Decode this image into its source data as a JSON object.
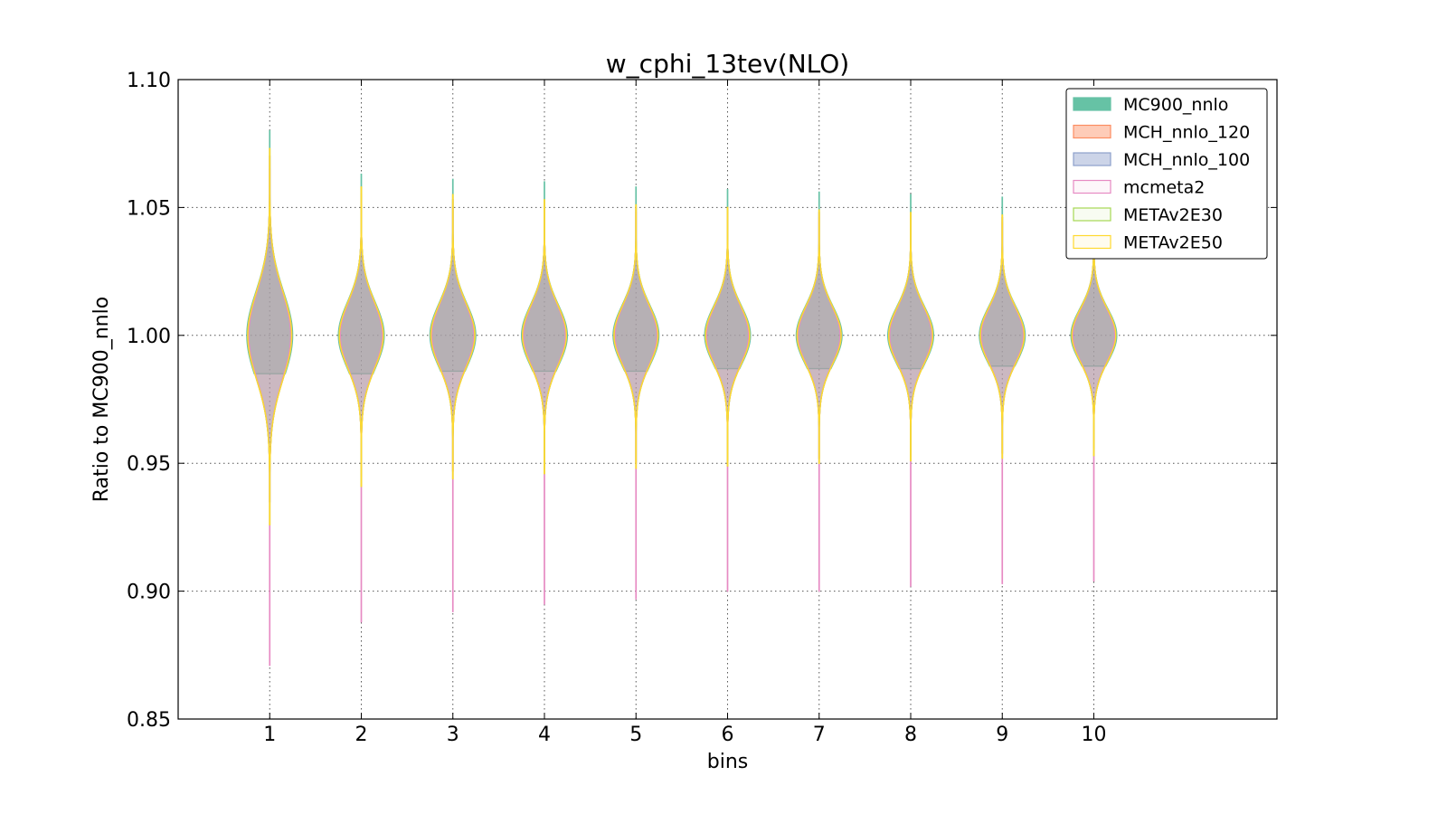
{
  "chart_data": {
    "type": "violin",
    "title": "w_cphi_13tev(NLO)",
    "xlabel": "bins",
    "ylabel": "Ratio to MC900_nnlo",
    "xticks": [
      "1",
      "2",
      "3",
      "4",
      "5",
      "6",
      "7",
      "8",
      "9",
      "10"
    ],
    "yticks": [
      "0.85",
      "0.90",
      "0.95",
      "1.00",
      "1.05",
      "1.10"
    ],
    "ylim": [
      0.85,
      1.1
    ],
    "xlim": [
      0,
      12
    ],
    "grid": true,
    "legend_position": "top-right",
    "categories": [
      1,
      2,
      3,
      4,
      5,
      6,
      7,
      8,
      9,
      10
    ],
    "center": 1.0,
    "series": [
      {
        "name": "MC900_nnlo",
        "color": "#66c2a5",
        "style": "filled",
        "ymin": [
          0.985,
          0.985,
          0.986,
          0.986,
          0.986,
          0.987,
          0.987,
          0.987,
          0.988,
          0.988
        ],
        "ymax": [
          1.08,
          1.063,
          1.061,
          1.06,
          1.058,
          1.057,
          1.056,
          1.055,
          1.054,
          1.038
        ],
        "width": [
          0.25,
          0.25,
          0.25,
          0.25,
          0.25,
          0.25,
          0.25,
          0.25,
          0.25,
          0.25
        ],
        "sigma": [
          0.017,
          0.013,
          0.0125,
          0.012,
          0.0118,
          0.0115,
          0.0113,
          0.0112,
          0.011,
          0.0105
        ]
      },
      {
        "name": "MCH_nnlo_120",
        "color": "#fc8d62",
        "style": "filled",
        "ymin": [
          0.935,
          0.945,
          0.947,
          0.948,
          0.95,
          0.951,
          0.952,
          0.953,
          0.954,
          0.956
        ],
        "ymax": [
          1.07,
          1.055,
          1.053,
          1.052,
          1.05,
          1.049,
          1.048,
          1.047,
          1.046,
          1.037
        ],
        "width": [
          0.24,
          0.24,
          0.24,
          0.24,
          0.24,
          0.24,
          0.24,
          0.24,
          0.24,
          0.24
        ],
        "sigma": [
          0.017,
          0.013,
          0.0125,
          0.012,
          0.0118,
          0.0115,
          0.0113,
          0.0112,
          0.011,
          0.0105
        ]
      },
      {
        "name": "MCH_nnlo_100",
        "color": "#8da0cb",
        "style": "filled",
        "ymin": [
          0.935,
          0.945,
          0.947,
          0.948,
          0.95,
          0.951,
          0.952,
          0.953,
          0.954,
          0.956
        ],
        "ymax": [
          1.07,
          1.055,
          1.053,
          1.052,
          1.05,
          1.049,
          1.048,
          1.047,
          1.046,
          1.037
        ],
        "width": [
          0.24,
          0.24,
          0.24,
          0.24,
          0.24,
          0.24,
          0.24,
          0.24,
          0.24,
          0.24
        ],
        "sigma": [
          0.017,
          0.013,
          0.0125,
          0.012,
          0.0118,
          0.0115,
          0.0113,
          0.0112,
          0.011,
          0.0105
        ]
      },
      {
        "name": "mcmeta2",
        "color": "#e78ac3",
        "style": "outline",
        "ymin": [
          0.871,
          0.888,
          0.892,
          0.895,
          0.897,
          0.9,
          0.9,
          0.902,
          0.903,
          0.904
        ],
        "ymax": [
          1.065,
          1.052,
          1.05,
          1.049,
          1.048,
          1.047,
          1.046,
          1.045,
          1.044,
          1.036
        ],
        "width": [
          0.23,
          0.23,
          0.23,
          0.23,
          0.23,
          0.23,
          0.23,
          0.23,
          0.23,
          0.23
        ],
        "sigma": [
          0.017,
          0.013,
          0.0125,
          0.012,
          0.0118,
          0.0115,
          0.0113,
          0.0112,
          0.011,
          0.0105
        ]
      },
      {
        "name": "METAv2E30",
        "color": "#a6d854",
        "style": "outline",
        "ymin": [
          0.926,
          0.941,
          0.944,
          0.946,
          0.948,
          0.949,
          0.95,
          0.951,
          0.952,
          0.953
        ],
        "ymax": [
          1.073,
          1.058,
          1.055,
          1.053,
          1.051,
          1.05,
          1.049,
          1.048,
          1.047,
          1.037
        ],
        "width": [
          0.24,
          0.24,
          0.24,
          0.24,
          0.24,
          0.24,
          0.24,
          0.24,
          0.24,
          0.24
        ],
        "sigma": [
          0.017,
          0.013,
          0.0125,
          0.012,
          0.0118,
          0.0115,
          0.0113,
          0.0112,
          0.011,
          0.0105
        ]
      },
      {
        "name": "METAv2E50",
        "color": "#ffd92f",
        "style": "outline",
        "ymin": [
          0.926,
          0.941,
          0.944,
          0.946,
          0.948,
          0.949,
          0.95,
          0.951,
          0.952,
          0.953
        ],
        "ymax": [
          1.073,
          1.058,
          1.055,
          1.053,
          1.051,
          1.05,
          1.049,
          1.048,
          1.047,
          1.037
        ],
        "width": [
          0.24,
          0.24,
          0.24,
          0.24,
          0.24,
          0.24,
          0.24,
          0.24,
          0.24,
          0.24
        ],
        "sigma": [
          0.017,
          0.013,
          0.0125,
          0.012,
          0.0118,
          0.0115,
          0.0113,
          0.0112,
          0.011,
          0.0105
        ]
      }
    ]
  }
}
